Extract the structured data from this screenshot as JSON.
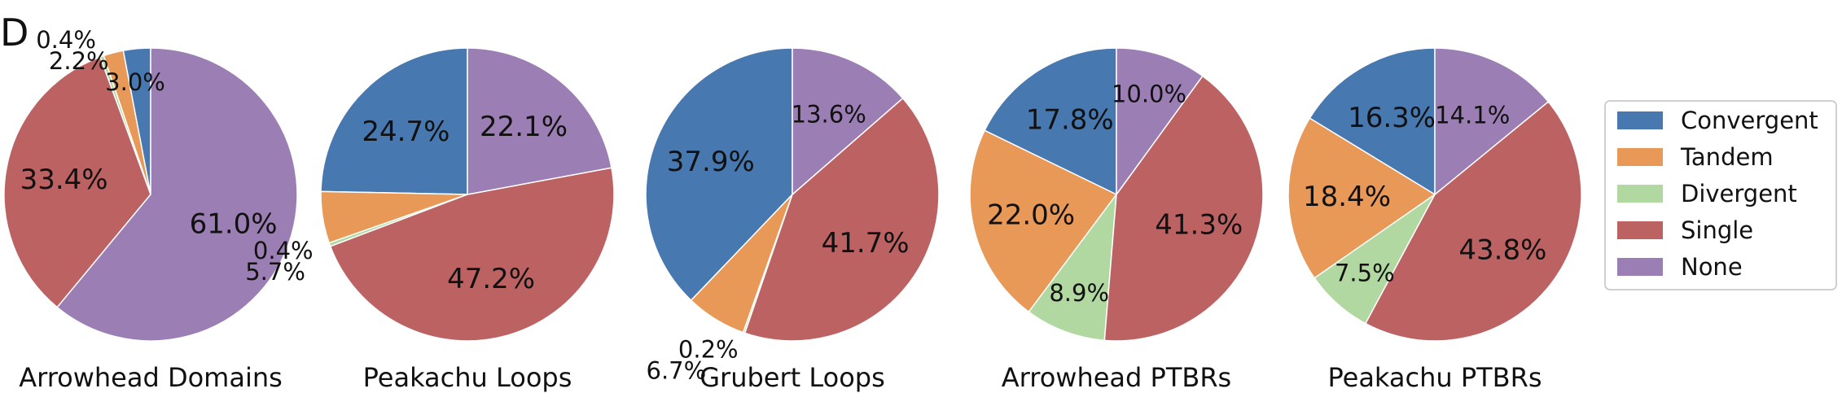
{
  "panel_label": "D",
  "chart_data": {
    "type": "pie",
    "legend": {
      "placement": "right",
      "entries": [
        {
          "name": "Convergent",
          "color": "#4878b0"
        },
        {
          "name": "Tandem",
          "color": "#e89857"
        },
        {
          "name": "Divergent",
          "color": "#b2d8a1"
        },
        {
          "name": "Single",
          "color": "#bd6262"
        },
        {
          "name": "None",
          "color": "#9b7eb3"
        }
      ]
    },
    "pies": [
      {
        "title": "Arrowhead Domains",
        "slices": [
          {
            "category": "Convergent",
            "value": 3.0,
            "label": "3.0%"
          },
          {
            "category": "Tandem",
            "value": 2.2,
            "label": "2.2%"
          },
          {
            "category": "Divergent",
            "value": 0.4,
            "label": "0.4%"
          },
          {
            "category": "Single",
            "value": 33.4,
            "label": "33.4%"
          },
          {
            "category": "None",
            "value": 61.0,
            "label": "61.0%"
          }
        ]
      },
      {
        "title": "Peakachu Loops",
        "slices": [
          {
            "category": "Convergent",
            "value": 24.7,
            "label": "24.7%"
          },
          {
            "category": "Tandem",
            "value": 5.7,
            "label": "5.7%"
          },
          {
            "category": "Divergent",
            "value": 0.4,
            "label": "0.4%"
          },
          {
            "category": "Single",
            "value": 47.2,
            "label": "47.2%"
          },
          {
            "category": "None",
            "value": 22.1,
            "label": "22.1%"
          }
        ]
      },
      {
        "title": "Grubert Loops",
        "slices": [
          {
            "category": "Convergent",
            "value": 37.9,
            "label": "37.9%"
          },
          {
            "category": "Tandem",
            "value": 6.7,
            "label": "6.7%"
          },
          {
            "category": "Divergent",
            "value": 0.2,
            "label": "0.2%"
          },
          {
            "category": "Single",
            "value": 41.7,
            "label": "41.7%"
          },
          {
            "category": "None",
            "value": 13.6,
            "label": "13.6%"
          }
        ]
      },
      {
        "title": "Arrowhead PTBRs",
        "slices": [
          {
            "category": "Convergent",
            "value": 17.8,
            "label": "17.8%"
          },
          {
            "category": "Tandem",
            "value": 22.0,
            "label": "22.0%"
          },
          {
            "category": "Divergent",
            "value": 8.9,
            "label": "8.9%"
          },
          {
            "category": "Single",
            "value": 41.3,
            "label": "41.3%"
          },
          {
            "category": "None",
            "value": 10.0,
            "label": "10.0%"
          }
        ]
      },
      {
        "title": "Peakachu PTBRs",
        "slices": [
          {
            "category": "Convergent",
            "value": 16.3,
            "label": "16.3%"
          },
          {
            "category": "Tandem",
            "value": 18.4,
            "label": "18.4%"
          },
          {
            "category": "Divergent",
            "value": 7.5,
            "label": "7.5%"
          },
          {
            "category": "Single",
            "value": 43.8,
            "label": "43.8%"
          },
          {
            "category": "None",
            "value": 14.1,
            "label": "14.1%"
          }
        ]
      }
    ]
  }
}
